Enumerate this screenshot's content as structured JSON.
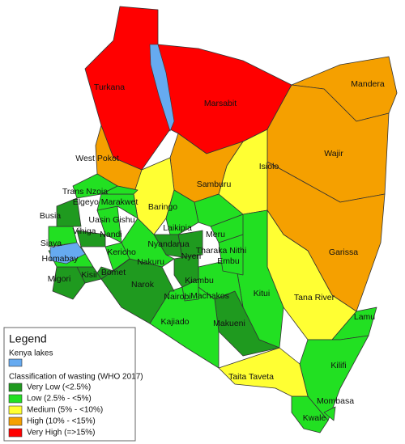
{
  "map": {
    "legend": {
      "title": "Legend",
      "lakes_label": "Kenya lakes",
      "lakes_color": "#66aaf0",
      "classification_title": "Classification of wasting (WHO 2017)",
      "classes": [
        {
          "label": "Very Low (<2.5%)",
          "color": "#1f9a1f"
        },
        {
          "label": "Low (2.5% - <5%)",
          "color": "#22e022"
        },
        {
          "label": "Medium (5% - <10%)",
          "color": "#ffff33"
        },
        {
          "label": "High (10% - <15%)",
          "color": "#f5a000"
        },
        {
          "label": "Very High (=>15%)",
          "color": "#ff0000"
        }
      ]
    },
    "counties": [
      {
        "name": "Turkana",
        "class": 4
      },
      {
        "name": "Marsabit",
        "class": 4
      },
      {
        "name": "Mandera",
        "class": 3
      },
      {
        "name": "Wajir",
        "class": 3
      },
      {
        "name": "Garissa",
        "class": 3
      },
      {
        "name": "Isiolo",
        "class": 2
      },
      {
        "name": "Samburu",
        "class": 3
      },
      {
        "name": "West Pokot",
        "class": 3
      },
      {
        "name": "Baringo",
        "class": 2
      },
      {
        "name": "Tana River",
        "class": 2
      },
      {
        "name": "Lamu",
        "class": 1
      },
      {
        "name": "Kitui",
        "class": 1
      },
      {
        "name": "Kilifi",
        "class": 1
      },
      {
        "name": "Kwale",
        "class": 1
      },
      {
        "name": "Mombasa",
        "class": 1
      },
      {
        "name": "Taita Taveta",
        "class": 2
      },
      {
        "name": "Makueni",
        "class": 0
      },
      {
        "name": "Kajiado",
        "class": 1
      },
      {
        "name": "Machakos",
        "class": 1
      },
      {
        "name": "Nairobi",
        "class": 1
      },
      {
        "name": "Narok",
        "class": 0
      },
      {
        "name": "Kiambu",
        "class": 0
      },
      {
        "name": "Nyeri",
        "class": 0
      },
      {
        "name": "Embu",
        "class": 1
      },
      {
        "name": "Tharaka Nithi",
        "class": 1
      },
      {
        "name": "Meru",
        "class": 1
      },
      {
        "name": "Laikipia",
        "class": 1
      },
      {
        "name": "Nyandarua",
        "class": 0
      },
      {
        "name": "Nakuru",
        "class": 1
      },
      {
        "name": "Kericho",
        "class": 1
      },
      {
        "name": "Bomet",
        "class": 0
      },
      {
        "name": "Kisii",
        "class": 0
      },
      {
        "name": "Migori",
        "class": 0
      },
      {
        "name": "Homabay",
        "class": 1
      },
      {
        "name": "Siaya",
        "class": 1
      },
      {
        "name": "Vihiga",
        "class": 0
      },
      {
        "name": "Nandi",
        "class": 1
      },
      {
        "name": "Uasin Gishu",
        "class": 1
      },
      {
        "name": "Elgeyo Marakwet",
        "class": 1
      },
      {
        "name": "Trans Nzoia",
        "class": 1
      },
      {
        "name": "Busia",
        "class": 0
      }
    ]
  }
}
